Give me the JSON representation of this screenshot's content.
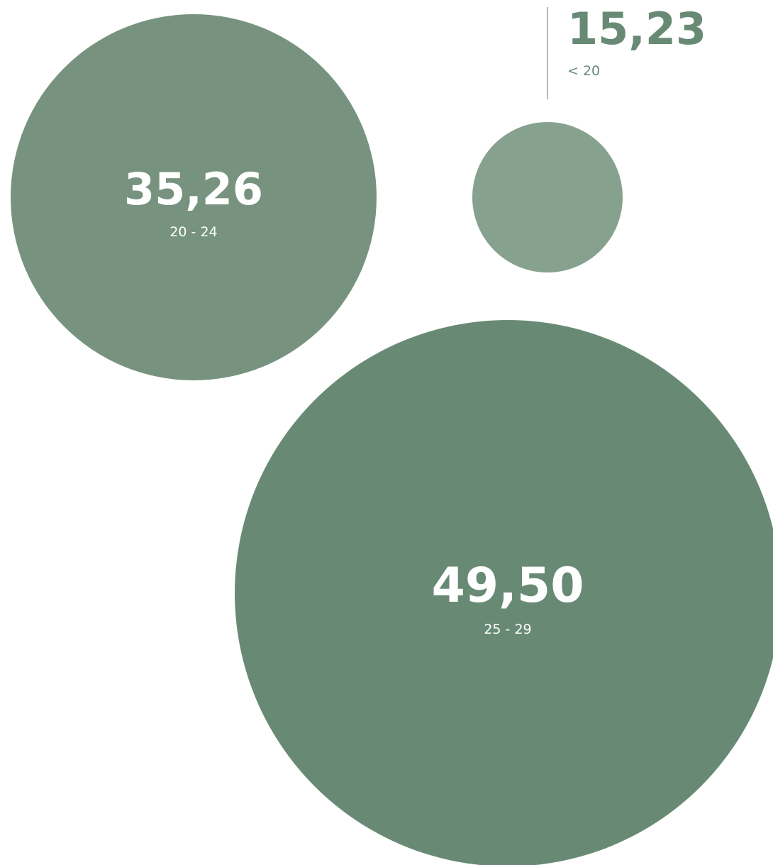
{
  "chart_data": {
    "type": "bubble",
    "title": "",
    "series": [
      {
        "value_label": "15,23",
        "value": 15.23,
        "category": "< 20",
        "color": "#87a18f",
        "label_placement": "callout-above"
      },
      {
        "value_label": "35,26",
        "value": 35.26,
        "category": "20 - 24",
        "color": "#77937f",
        "label_placement": "inside"
      },
      {
        "value_label": "49,50",
        "value": 49.5,
        "category": "25 - 29",
        "color": "#688a75",
        "label_placement": "inside"
      }
    ],
    "callout_text_color": "#688a75",
    "callout_line_color": "#9aa39d"
  }
}
